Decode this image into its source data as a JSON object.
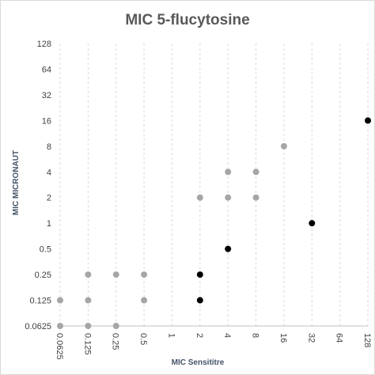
{
  "chart_data": {
    "type": "scatter",
    "title": "MIC 5-flucytosine",
    "xlabel": "MIC Sensititre",
    "ylabel": "MIC MICRONAUT",
    "x_scale": "log2",
    "y_scale": "log2",
    "xlim": [
      0.0625,
      128
    ],
    "ylim": [
      0.0625,
      128
    ],
    "x_ticks": [
      "0.0625",
      "0.125",
      "0.25",
      "0.5",
      "1",
      "2",
      "4",
      "8",
      "16",
      "32",
      "64",
      "128"
    ],
    "y_ticks": [
      "0.0625",
      "0.125",
      "0.25",
      "0.5",
      "1",
      "2",
      "4",
      "8",
      "16",
      "32",
      "64",
      "128"
    ],
    "grid": "vertical dashed",
    "legend": "none",
    "series": [
      {
        "color": "#a6a6a6",
        "points": [
          {
            "x": 0.0625,
            "y": 0.0625
          },
          {
            "x": 0.0625,
            "y": 0.125
          },
          {
            "x": 0.125,
            "y": 0.0625
          },
          {
            "x": 0.125,
            "y": 0.125
          },
          {
            "x": 0.125,
            "y": 0.25
          },
          {
            "x": 0.25,
            "y": 0.0625
          },
          {
            "x": 0.25,
            "y": 0.25
          },
          {
            "x": 0.5,
            "y": 0.125
          },
          {
            "x": 0.5,
            "y": 0.25
          },
          {
            "x": 2,
            "y": 2
          },
          {
            "x": 4,
            "y": 2
          },
          {
            "x": 4,
            "y": 4
          },
          {
            "x": 8,
            "y": 2
          },
          {
            "x": 8,
            "y": 4
          },
          {
            "x": 16,
            "y": 8
          }
        ]
      },
      {
        "color": "#000000",
        "points": [
          {
            "x": 2,
            "y": 0.125
          },
          {
            "x": 2,
            "y": 0.25
          },
          {
            "x": 4,
            "y": 0.5
          },
          {
            "x": 32,
            "y": 1
          },
          {
            "x": 128,
            "y": 16
          }
        ]
      }
    ]
  }
}
